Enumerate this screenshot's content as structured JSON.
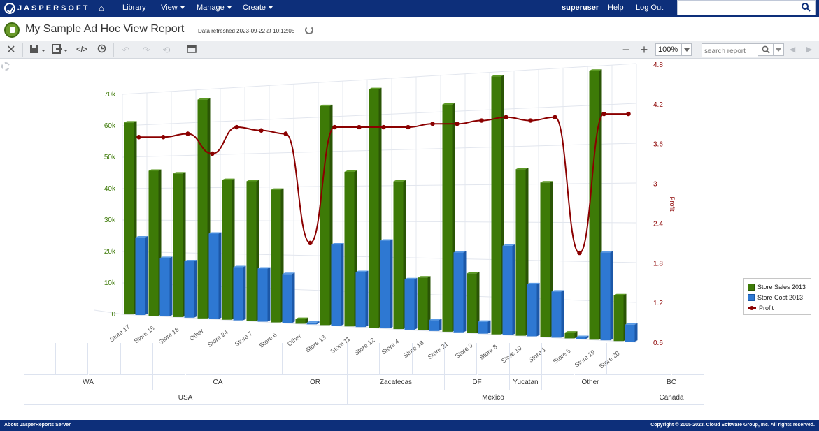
{
  "topnav": {
    "brand": "JASPERSOFT",
    "items": [
      {
        "label": "Library",
        "dropdown": false
      },
      {
        "label": "View",
        "dropdown": true
      },
      {
        "label": "Manage",
        "dropdown": true
      },
      {
        "label": "Create",
        "dropdown": true
      }
    ],
    "user": "superuser",
    "help": "Help",
    "logout": "Log Out",
    "search_value": ""
  },
  "titlebar": {
    "title": "My Sample Ad Hoc View Report",
    "refreshed": "Data refreshed 2023-09-22 at 10:12:05"
  },
  "toolbar": {
    "zoom": "100%",
    "search_placeholder": "search report",
    "icons": [
      "close-icon",
      "save-icon",
      "export-icon",
      "code-icon",
      "clock-icon",
      "undo-icon",
      "redo-icon",
      "undo-all-icon",
      "table-icon",
      "zoom-out-icon",
      "zoom-in-icon",
      "search-icon",
      "prev-icon",
      "next-icon"
    ]
  },
  "chart_data": {
    "type": "bar",
    "categories": [
      "Store 17",
      "Store 15",
      "Store 16",
      "Other",
      "Store 24",
      "Store 7",
      "Store 6",
      "Other",
      "Store 13",
      "Store 11",
      "Store 12",
      "Store 4",
      "Store 18",
      "Store 21",
      "Store 9",
      "Store 8",
      "Store 10",
      "Store 1",
      "Store 5",
      "Store 19",
      "Store 20"
    ],
    "series": [
      {
        "name": "Store Sales 2013",
        "axis": "left",
        "kind": "bar",
        "color": "#3d7a07",
        "values": [
          61000,
          45500,
          44500,
          67000,
          42300,
          41800,
          39200,
          1400,
          63200,
          44100,
          67300,
          41200,
          14600,
          62000,
          16100,
          68900,
          44000,
          40400,
          1500,
          68900,
          11600
        ]
      },
      {
        "name": "Store Cost 2013",
        "axis": "left",
        "kind": "bar",
        "color": "#2e78d2",
        "values": [
          24500,
          18200,
          17400,
          26000,
          16000,
          15800,
          14400,
          500,
          23300,
          15600,
          24600,
          14000,
          3000,
          21700,
          3200,
          23700,
          13700,
          12000,
          500,
          22400,
          4300
        ]
      },
      {
        "name": "Profit",
        "axis": "right",
        "kind": "line",
        "color": "#8b0000",
        "values": [
          3.7,
          3.7,
          3.75,
          3.45,
          3.85,
          3.8,
          3.75,
          2.1,
          3.85,
          3.85,
          3.85,
          3.85,
          3.9,
          3.9,
          3.95,
          4.0,
          3.95,
          4.0,
          1.95,
          4.05,
          4.05
        ]
      }
    ],
    "left_axis": {
      "ticks": [
        "0",
        "10k",
        "20k",
        "30k",
        "40k",
        "50k",
        "60k",
        "70k"
      ],
      "min": 0,
      "max": 70000,
      "color": "#3d7a07"
    },
    "right_axis": {
      "label": "Profit",
      "ticks": [
        "0.6",
        "1.2",
        "1.8",
        "2.4",
        "3",
        "3.6",
        "4.2",
        "4.8"
      ],
      "min": 0.6,
      "max": 4.8,
      "color": "#8b0000"
    },
    "legend": {
      "placement": "right",
      "entries": [
        {
          "label": "Store Sales 2013",
          "color": "#3d7a07"
        },
        {
          "label": "Store Cost 2013",
          "color": "#2e78d2"
        },
        {
          "label": "Profit",
          "color": "#8b0000"
        }
      ]
    },
    "states": [
      {
        "label": "WA",
        "span": 2
      },
      {
        "label": "CA",
        "span": 2
      },
      {
        "label": "OR",
        "span": 1
      },
      {
        "label": "Zacatecas",
        "span": 1.5
      },
      {
        "label": "DF",
        "span": 1
      },
      {
        "label": "Yucatan",
        "span": 0.5
      },
      {
        "label": "Other",
        "span": 1.5
      },
      {
        "label": "BC",
        "span": 1
      }
    ],
    "countries": [
      {
        "label": "USA",
        "span": 5
      },
      {
        "label": "Mexico",
        "span": 4.5
      },
      {
        "label": "Canada",
        "span": 1
      }
    ]
  },
  "footer": {
    "left": "About JasperReports Server",
    "right": "Copyright © 2005-2023. Cloud Software Group, Inc. All rights reserved."
  }
}
